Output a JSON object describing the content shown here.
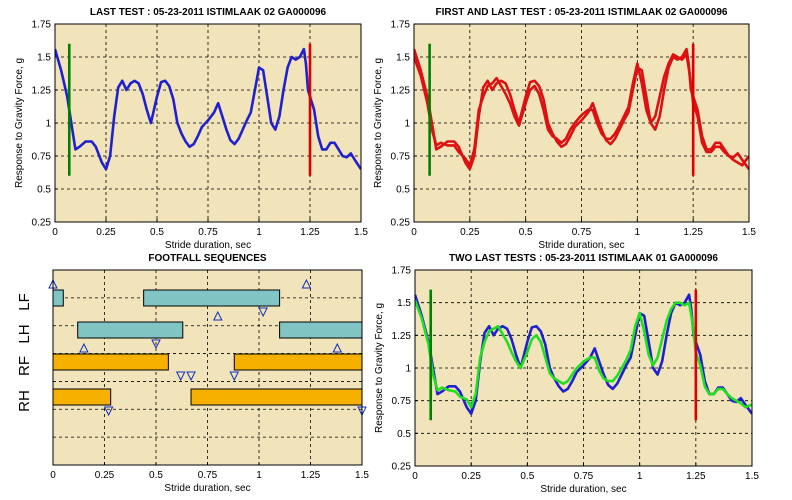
{
  "chart_data": [
    {
      "type": "line",
      "title": "LAST TEST : 05-23-2011 ISTIMLAAK 02 GA000096",
      "xlabel": "Stride duration, sec",
      "ylabel": "Response to Gravity Force, g",
      "xlim": [
        0,
        1.5
      ],
      "ylim": [
        0.25,
        1.75
      ],
      "xticks": [
        "0",
        "0.25",
        "0.5",
        "0.75",
        "1",
        "1.25",
        "1.5"
      ],
      "yticks": [
        "0.25",
        "0.5",
        "0.75",
        "1",
        "1.25",
        "1.5",
        "1.75"
      ],
      "grid": true,
      "x": [
        0,
        0.03,
        0.06,
        0.08,
        0.1,
        0.12,
        0.15,
        0.18,
        0.2,
        0.23,
        0.25,
        0.27,
        0.29,
        0.31,
        0.33,
        0.35,
        0.37,
        0.39,
        0.41,
        0.43,
        0.45,
        0.47,
        0.5,
        0.52,
        0.54,
        0.56,
        0.58,
        0.6,
        0.62,
        0.64,
        0.66,
        0.68,
        0.7,
        0.72,
        0.75,
        0.78,
        0.8,
        0.82,
        0.84,
        0.86,
        0.88,
        0.9,
        0.92,
        0.94,
        0.96,
        0.98,
        1,
        1.02,
        1.04,
        1.06,
        1.08,
        1.1,
        1.12,
        1.14,
        1.16,
        1.18,
        1.2,
        1.22,
        1.23,
        1.24,
        1.25,
        1.27,
        1.29,
        1.31,
        1.33,
        1.35,
        1.37,
        1.39,
        1.41,
        1.43,
        1.45,
        1.47,
        1.5
      ],
      "series": [
        {
          "color": "#2020cc",
          "values": [
            1.56,
            1.4,
            1.2,
            1.0,
            0.8,
            0.82,
            0.86,
            0.86,
            0.82,
            0.7,
            0.65,
            0.75,
            1.05,
            1.27,
            1.32,
            1.25,
            1.3,
            1.32,
            1.3,
            1.22,
            1.1,
            1.0,
            1.2,
            1.31,
            1.32,
            1.28,
            1.18,
            1.0,
            0.92,
            0.86,
            0.82,
            0.84,
            0.9,
            0.97,
            1.02,
            1.08,
            1.15,
            1.05,
            0.95,
            0.87,
            0.84,
            0.88,
            0.95,
            1.02,
            1.08,
            1.25,
            1.42,
            1.4,
            1.2,
            1.0,
            0.95,
            1.05,
            1.25,
            1.42,
            1.5,
            1.48,
            1.5,
            1.56,
            1.45,
            1.25,
            1.2,
            1.1,
            0.9,
            0.8,
            0.8,
            0.85,
            0.85,
            0.8,
            0.75,
            0.74,
            0.77,
            0.72,
            0.65
          ]
        }
      ],
      "markers": [
        {
          "x": 0.07,
          "from": 0.6,
          "to": 1.6,
          "color": "#008000"
        },
        {
          "x": 1.25,
          "from": 0.6,
          "to": 1.6,
          "color": "#dd0000"
        }
      ]
    },
    {
      "type": "line",
      "title": "FIRST AND LAST TEST : 05-23-2011 ISTIMLAAK 02 GA000096",
      "xlabel": "Stride duration, sec",
      "ylabel": "Response to Gravity Force, g",
      "xlim": [
        0,
        1.5
      ],
      "ylim": [
        0.25,
        1.75
      ],
      "xticks": [
        "0",
        "0.25",
        "0.5",
        "0.75",
        "1",
        "1.25",
        "1.5"
      ],
      "yticks": [
        "0.25",
        "0.5",
        "0.75",
        "1",
        "1.25",
        "1.5",
        "1.75"
      ],
      "grid": true,
      "x": [
        0,
        0.03,
        0.06,
        0.08,
        0.1,
        0.12,
        0.15,
        0.18,
        0.2,
        0.23,
        0.25,
        0.27,
        0.29,
        0.31,
        0.33,
        0.35,
        0.37,
        0.39,
        0.41,
        0.43,
        0.45,
        0.47,
        0.5,
        0.52,
        0.54,
        0.56,
        0.58,
        0.6,
        0.62,
        0.64,
        0.66,
        0.68,
        0.7,
        0.72,
        0.75,
        0.78,
        0.8,
        0.82,
        0.84,
        0.86,
        0.88,
        0.9,
        0.92,
        0.94,
        0.96,
        0.98,
        1,
        1.02,
        1.04,
        1.06,
        1.08,
        1.1,
        1.12,
        1.14,
        1.16,
        1.18,
        1.2,
        1.22,
        1.23,
        1.24,
        1.25,
        1.27,
        1.29,
        1.31,
        1.33,
        1.35,
        1.37,
        1.39,
        1.41,
        1.43,
        1.45,
        1.47,
        1.5
      ],
      "series": [
        {
          "color": "#dd1111",
          "values": [
            1.56,
            1.4,
            1.2,
            1.0,
            0.8,
            0.82,
            0.86,
            0.86,
            0.82,
            0.7,
            0.65,
            0.75,
            1.05,
            1.27,
            1.32,
            1.25,
            1.3,
            1.32,
            1.3,
            1.22,
            1.1,
            1.0,
            1.2,
            1.31,
            1.32,
            1.28,
            1.18,
            1.0,
            0.92,
            0.86,
            0.82,
            0.84,
            0.9,
            0.97,
            1.02,
            1.08,
            1.15,
            1.05,
            0.95,
            0.87,
            0.84,
            0.88,
            0.95,
            1.02,
            1.08,
            1.25,
            1.42,
            1.4,
            1.2,
            1.0,
            0.95,
            1.05,
            1.25,
            1.42,
            1.5,
            1.48,
            1.5,
            1.56,
            1.45,
            1.25,
            1.2,
            1.1,
            0.9,
            0.8,
            0.8,
            0.85,
            0.85,
            0.8,
            0.75,
            0.74,
            0.77,
            0.72,
            0.65
          ]
        },
        {
          "color": "#dd1111",
          "values": [
            1.5,
            1.36,
            1.15,
            0.95,
            0.83,
            0.85,
            0.83,
            0.83,
            0.78,
            0.73,
            0.68,
            0.8,
            1.1,
            1.2,
            1.28,
            1.3,
            1.34,
            1.28,
            1.22,
            1.15,
            1.05,
            0.98,
            1.15,
            1.25,
            1.28,
            1.22,
            1.1,
            0.95,
            0.9,
            0.88,
            0.85,
            0.88,
            0.95,
            1.0,
            1.06,
            1.1,
            1.1,
            1.0,
            0.92,
            0.88,
            0.88,
            0.92,
            0.98,
            1.05,
            1.12,
            1.3,
            1.45,
            1.3,
            1.1,
            1.0,
            1.05,
            1.2,
            1.35,
            1.45,
            1.52,
            1.5,
            1.48,
            1.52,
            1.42,
            1.3,
            1.15,
            1.05,
            0.85,
            0.78,
            0.78,
            0.82,
            0.82,
            0.78,
            0.75,
            0.72,
            0.7,
            0.68,
            0.75
          ]
        }
      ],
      "markers": [
        {
          "x": 0.07,
          "from": 0.6,
          "to": 1.6,
          "color": "#008000"
        },
        {
          "x": 1.25,
          "from": 0.6,
          "to": 1.6,
          "color": "#dd0000"
        }
      ]
    },
    {
      "type": "gantt",
      "title": "FOOTFALL SEQUENCES",
      "xlabel": "Stride duration, sec",
      "xlim": [
        0,
        1.5
      ],
      "xticks": [
        "0",
        "0.25",
        "0.5",
        "0.75",
        "1",
        "1.25",
        "1.5"
      ],
      "grid": true,
      "rows": [
        "LF",
        "LH",
        "RF",
        "RH"
      ],
      "bars": [
        {
          "row": "LF",
          "start": 0.0,
          "end": 0.05,
          "color": "#80c4c4"
        },
        {
          "row": "LF",
          "start": 0.44,
          "end": 1.1,
          "color": "#80c4c4"
        },
        {
          "row": "LH",
          "start": 0.12,
          "end": 0.63,
          "color": "#80c4c4"
        },
        {
          "row": "LH",
          "start": 1.1,
          "end": 1.5,
          "color": "#80c4c4"
        },
        {
          "row": "RF",
          "start": 0.0,
          "end": 0.56,
          "color": "#f5b000"
        },
        {
          "row": "RF",
          "start": 0.88,
          "end": 1.5,
          "color": "#f5b000"
        },
        {
          "row": "RH",
          "start": 0.0,
          "end": 0.28,
          "color": "#f5b000"
        },
        {
          "row": "RH",
          "start": 0.67,
          "end": 1.5,
          "color": "#f5b000"
        }
      ],
      "markers": [
        {
          "x": 0.0,
          "row": "LF",
          "dir": "up"
        },
        {
          "x": 1.23,
          "row": "LF",
          "dir": "up"
        },
        {
          "x": 1.02,
          "row": "LF",
          "dir": "down"
        },
        {
          "x": 0.5,
          "row": "LH",
          "dir": "down"
        },
        {
          "x": 0.8,
          "row": "LH",
          "dir": "up"
        },
        {
          "x": 0.62,
          "row": "RF",
          "dir": "down"
        },
        {
          "x": 0.15,
          "row": "RF",
          "dir": "up"
        },
        {
          "x": 0.67,
          "row": "RF",
          "dir": "down"
        },
        {
          "x": 0.88,
          "row": "RF",
          "dir": "down"
        },
        {
          "x": 1.38,
          "row": "RF",
          "dir": "up"
        },
        {
          "x": 0.27,
          "row": "RH",
          "dir": "down"
        },
        {
          "x": 1.5,
          "row": "RH",
          "dir": "down"
        }
      ]
    },
    {
      "type": "line",
      "title": "TWO LAST TESTS : 05-23-2011 ISTIMLAAK 01 GA000096",
      "xlabel": "Stride duration, sec",
      "ylabel": "Response to Gravity Force, g",
      "xlim": [
        0,
        1.5
      ],
      "ylim": [
        0.25,
        1.75
      ],
      "xticks": [
        "0",
        "0.25",
        "0.5",
        "0.75",
        "1",
        "1.25",
        "1.5"
      ],
      "yticks": [
        "0.25",
        "0.5",
        "0.75",
        "1",
        "1.25",
        "1.5",
        "1.75"
      ],
      "grid": true,
      "x": [
        0,
        0.03,
        0.06,
        0.08,
        0.1,
        0.12,
        0.15,
        0.18,
        0.2,
        0.23,
        0.25,
        0.27,
        0.29,
        0.31,
        0.33,
        0.35,
        0.37,
        0.39,
        0.41,
        0.43,
        0.45,
        0.47,
        0.5,
        0.52,
        0.54,
        0.56,
        0.58,
        0.6,
        0.62,
        0.64,
        0.66,
        0.68,
        0.7,
        0.72,
        0.75,
        0.78,
        0.8,
        0.82,
        0.84,
        0.86,
        0.88,
        0.9,
        0.92,
        0.94,
        0.96,
        0.98,
        1,
        1.02,
        1.04,
        1.06,
        1.08,
        1.1,
        1.12,
        1.14,
        1.16,
        1.18,
        1.2,
        1.22,
        1.23,
        1.24,
        1.25,
        1.27,
        1.29,
        1.31,
        1.33,
        1.35,
        1.37,
        1.39,
        1.41,
        1.43,
        1.45,
        1.47,
        1.5
      ],
      "series": [
        {
          "color": "#2020cc",
          "values": [
            1.56,
            1.4,
            1.2,
            1.0,
            0.8,
            0.82,
            0.86,
            0.86,
            0.82,
            0.7,
            0.65,
            0.75,
            1.05,
            1.27,
            1.32,
            1.25,
            1.3,
            1.32,
            1.3,
            1.22,
            1.1,
            1.0,
            1.2,
            1.31,
            1.32,
            1.28,
            1.18,
            1.0,
            0.92,
            0.86,
            0.82,
            0.84,
            0.9,
            0.97,
            1.02,
            1.08,
            1.15,
            1.05,
            0.95,
            0.87,
            0.84,
            0.88,
            0.95,
            1.02,
            1.08,
            1.25,
            1.42,
            1.4,
            1.2,
            1.0,
            0.95,
            1.05,
            1.25,
            1.42,
            1.5,
            1.48,
            1.5,
            1.56,
            1.45,
            1.25,
            1.2,
            1.1,
            0.9,
            0.8,
            0.8,
            0.85,
            0.85,
            0.8,
            0.75,
            0.74,
            0.77,
            0.72,
            0.65
          ]
        },
        {
          "color": "#22dd22",
          "values": [
            1.52,
            1.38,
            1.18,
            0.95,
            0.83,
            0.85,
            0.83,
            0.82,
            0.78,
            0.76,
            0.7,
            0.8,
            1.08,
            1.2,
            1.28,
            1.3,
            1.32,
            1.26,
            1.2,
            1.12,
            1.05,
            1.0,
            1.12,
            1.22,
            1.25,
            1.2,
            1.08,
            0.96,
            0.92,
            0.9,
            0.88,
            0.9,
            0.95,
            1.0,
            1.05,
            1.08,
            1.08,
            0.98,
            0.92,
            0.9,
            0.9,
            0.94,
            1.0,
            1.06,
            1.14,
            1.32,
            1.42,
            1.28,
            1.1,
            1.02,
            1.08,
            1.22,
            1.36,
            1.45,
            1.5,
            1.5,
            1.48,
            1.5,
            1.4,
            1.28,
            1.12,
            1.02,
            0.86,
            0.8,
            0.8,
            0.84,
            0.84,
            0.8,
            0.77,
            0.75,
            0.73,
            0.7,
            0.72
          ]
        }
      ],
      "markers": [
        {
          "x": 0.07,
          "from": 0.6,
          "to": 1.6,
          "color": "#008000"
        },
        {
          "x": 1.25,
          "from": 0.6,
          "to": 1.6,
          "color": "#dd0000"
        }
      ]
    }
  ]
}
